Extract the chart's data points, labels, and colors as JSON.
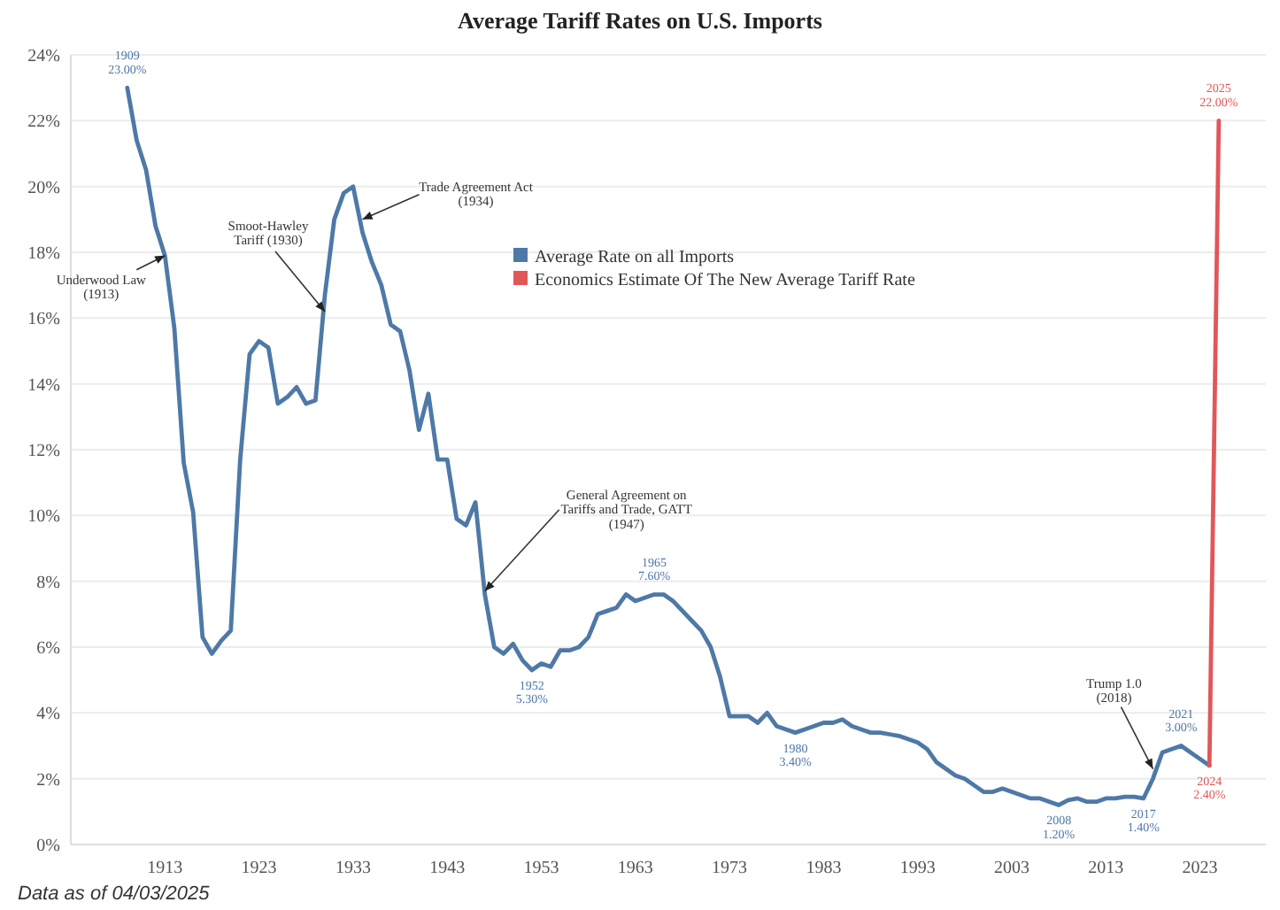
{
  "chart_data": {
    "type": "line",
    "title": "Average Tariff Rates on U.S. Imports",
    "x": [
      1909,
      1910,
      1911,
      1912,
      1913,
      1914,
      1915,
      1916,
      1917,
      1918,
      1919,
      1920,
      1921,
      1922,
      1923,
      1924,
      1925,
      1926,
      1927,
      1928,
      1929,
      1930,
      1931,
      1932,
      1933,
      1934,
      1935,
      1936,
      1937,
      1938,
      1939,
      1940,
      1941,
      1942,
      1943,
      1944,
      1945,
      1946,
      1947,
      1948,
      1949,
      1950,
      1951,
      1952,
      1953,
      1954,
      1955,
      1956,
      1957,
      1958,
      1959,
      1960,
      1961,
      1962,
      1963,
      1964,
      1965,
      1966,
      1967,
      1968,
      1969,
      1970,
      1971,
      1972,
      1973,
      1974,
      1975,
      1976,
      1977,
      1978,
      1979,
      1980,
      1981,
      1982,
      1983,
      1984,
      1985,
      1986,
      1987,
      1988,
      1989,
      1990,
      1991,
      1992,
      1993,
      1994,
      1995,
      1996,
      1997,
      1998,
      1999,
      2000,
      2001,
      2002,
      2003,
      2004,
      2005,
      2006,
      2007,
      2008,
      2009,
      2010,
      2011,
      2012,
      2013,
      2014,
      2015,
      2016,
      2017,
      2018,
      2019,
      2020,
      2021,
      2022,
      2023,
      2024
    ],
    "series": [
      {
        "name": "Average Rate on all Imports",
        "color": "#4e79a7",
        "values": [
          23.0,
          21.4,
          20.5,
          18.8,
          17.9,
          15.7,
          11.6,
          10.1,
          6.3,
          5.8,
          6.2,
          6.5,
          11.7,
          14.9,
          15.3,
          15.1,
          13.4,
          13.6,
          13.9,
          13.4,
          13.5,
          16.7,
          19.0,
          19.8,
          20.0,
          18.6,
          17.7,
          17.0,
          15.8,
          15.6,
          14.4,
          12.6,
          13.7,
          11.7,
          11.7,
          9.9,
          9.7,
          10.4,
          7.6,
          6.0,
          5.8,
          6.1,
          5.6,
          5.3,
          5.5,
          5.4,
          5.9,
          5.9,
          6.0,
          6.3,
          7.0,
          7.1,
          7.2,
          7.6,
          7.4,
          7.5,
          7.6,
          7.6,
          7.4,
          7.1,
          6.8,
          6.5,
          6.0,
          5.1,
          3.9,
          3.9,
          3.9,
          3.7,
          4.0,
          3.6,
          3.5,
          3.4,
          3.5,
          3.6,
          3.7,
          3.7,
          3.8,
          3.6,
          3.5,
          3.4,
          3.4,
          3.35,
          3.3,
          3.2,
          3.1,
          2.9,
          2.5,
          2.3,
          2.1,
          2.0,
          1.8,
          1.6,
          1.6,
          1.7,
          1.6,
          1.5,
          1.4,
          1.4,
          1.3,
          1.2,
          1.35,
          1.4,
          1.3,
          1.3,
          1.4,
          1.4,
          1.45,
          1.45,
          1.4,
          2.0,
          2.8,
          2.9,
          3.0,
          2.8,
          2.6,
          2.4
        ],
        "value_labels": [
          "1909\n23.00%",
          null,
          null,
          null,
          null,
          null,
          null,
          null,
          null,
          null,
          null,
          null,
          null,
          null,
          null,
          null,
          null,
          null,
          null,
          null,
          null,
          null,
          null,
          null,
          null,
          null,
          null,
          null,
          null,
          null,
          null,
          null,
          null,
          null,
          null,
          null,
          null,
          null,
          null,
          null,
          null,
          null,
          null,
          "1952\n5.30%",
          null,
          null,
          null,
          null,
          null,
          null,
          null,
          null,
          null,
          null,
          null,
          null,
          "1965\n7.60%",
          null,
          null,
          null,
          null,
          null,
          null,
          null,
          null,
          null,
          null,
          null,
          null,
          null,
          null,
          "1980\n3.40%",
          null,
          null,
          null,
          null,
          null,
          null,
          null,
          null,
          null,
          null,
          null,
          null,
          null,
          null,
          null,
          null,
          null,
          null,
          null,
          null,
          null,
          null,
          null,
          null,
          null,
          null,
          null,
          "2008\n1.20%",
          null,
          null,
          null,
          null,
          null,
          null,
          null,
          null,
          "2017\n1.40%",
          null,
          null,
          null,
          "2021\n3.00%",
          null,
          null,
          null
        ]
      },
      {
        "name": "Economics Estimate Of The New Average Tariff Rate",
        "color": "#e15759",
        "x": [
          2024,
          2025
        ],
        "values": [
          2.4,
          22.0
        ],
        "value_labels": [
          "2024\n2.40%",
          "2025\n22.00%"
        ]
      }
    ],
    "xlim": [
      1903,
      2030
    ],
    "xticks": [
      1913,
      1923,
      1933,
      1943,
      1953,
      1963,
      1973,
      1983,
      1993,
      2003,
      2013,
      2023
    ],
    "ylim": [
      0,
      24
    ],
    "yticks": [
      {
        "value": 0,
        "label": "0%"
      },
      {
        "value": 2,
        "label": "2%"
      },
      {
        "value": 4,
        "label": "4%"
      },
      {
        "value": 6,
        "label": "6%"
      },
      {
        "value": 8,
        "label": "8%"
      },
      {
        "value": 10,
        "label": "10%"
      },
      {
        "value": 12,
        "label": "12%"
      },
      {
        "value": 14,
        "label": "14%"
      },
      {
        "value": 16,
        "label": "16%"
      },
      {
        "value": 18,
        "label": "18%"
      },
      {
        "value": 20,
        "label": "20%"
      },
      {
        "value": 22,
        "label": "22%"
      },
      {
        "value": 24,
        "label": "24%"
      }
    ],
    "grid": "y",
    "legend": "top",
    "annotations": [
      {
        "text": "Underwood Law\n(1913)",
        "x": 1913,
        "y": 17.9
      },
      {
        "text": "Smoot-Hawley\nTariff (1930)",
        "x": 1930,
        "y": 16.2
      },
      {
        "text": "Trade Agreement Act\n(1934)",
        "x": 1934,
        "y": 19.0
      },
      {
        "text": "General Agreement on\nTariffs and Trade, GATT\n(1947)",
        "x": 1947,
        "y": 7.7
      },
      {
        "text": "Trump 1.0\n(2018)",
        "x": 2018,
        "y": 2.3
      },
      "Data as of 04/03/2025"
    ]
  }
}
